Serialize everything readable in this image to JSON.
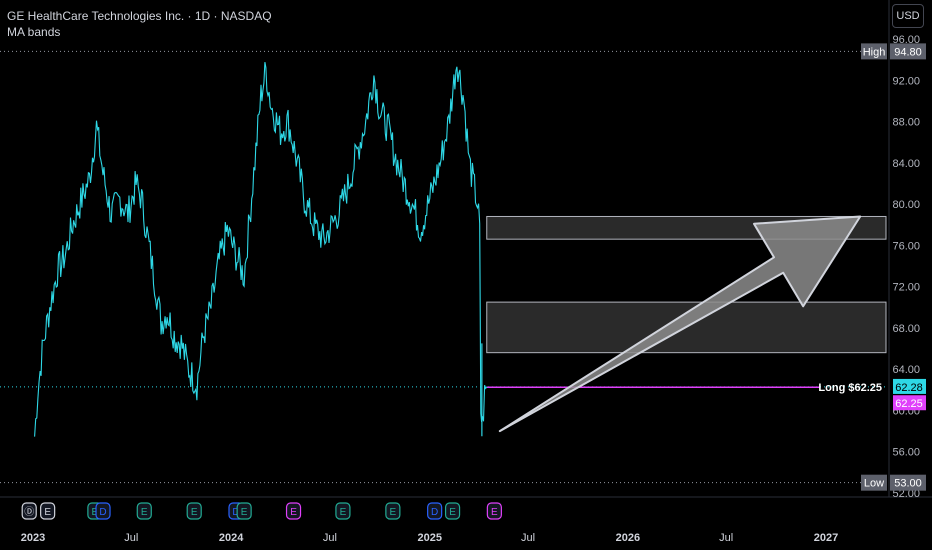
{
  "header": {
    "title": "GE HealthCare Technologies Inc. · 1D · NASDAQ",
    "indicator": "MA bands",
    "currency": "USD"
  },
  "colors": {
    "price": "#2ed8e6",
    "long": "#e040fb",
    "high_low": "#9598a1",
    "zone": "#2a2a2a",
    "arrow": "#8c8c8c"
  },
  "chart_data": {
    "type": "line",
    "ylim": [
      52,
      96
    ],
    "y_ticks": [
      "96.00",
      "92.00",
      "88.00",
      "84.00",
      "80.00",
      "76.00",
      "72.00",
      "68.00",
      "64.00",
      "60.00",
      "56.00",
      "52.00"
    ],
    "x_ticks": [
      "2023",
      "Jul",
      "2024",
      "Jul",
      "2025",
      "Jul",
      "2026",
      "Jul",
      "2027"
    ],
    "high": {
      "label": "High",
      "value": "94.80"
    },
    "low": {
      "label": "Low",
      "value": "53.00"
    },
    "last_price": "62.28",
    "long_label": "Long $62.25",
    "long_value": "62.25",
    "zones": [
      {
        "from": 76.6,
        "to": 78.8
      },
      {
        "from": 65.6,
        "to": 70.5
      }
    ],
    "arrow": {
      "from_date": "2025-05-10",
      "from_price": 58.0,
      "to_date": "2027-03-05",
      "to_price": 78.8
    },
    "events": [
      {
        "date": "2022-12-25",
        "label": "Ⓓ",
        "color": "#d1d4dc",
        "border": "#d1d4dc"
      },
      {
        "date": "2023-01-28",
        "label": "E",
        "color": "#d1d4dc",
        "border": "#d1d4dc"
      },
      {
        "date": "2023-04-25",
        "label": "E",
        "color": "#22ab94",
        "border": "#22ab94"
      },
      {
        "date": "2023-05-10",
        "label": "D",
        "color": "#2962ff",
        "border": "#2962ff"
      },
      {
        "date": "2023-07-25",
        "label": "E",
        "color": "#22ab94",
        "border": "#22ab94"
      },
      {
        "date": "2023-10-25",
        "label": "E",
        "color": "#22ab94",
        "border": "#22ab94"
      },
      {
        "date": "2024-01-10",
        "label": "D",
        "color": "#2962ff",
        "border": "#2962ff"
      },
      {
        "date": "2024-01-25",
        "label": "E",
        "color": "#22ab94",
        "border": "#22ab94"
      },
      {
        "date": "2024-04-25",
        "label": "E",
        "color": "#e040fb",
        "border": "#e040fb"
      },
      {
        "date": "2024-07-25",
        "label": "E",
        "color": "#22ab94",
        "border": "#22ab94"
      },
      {
        "date": "2024-10-25",
        "label": "E",
        "color": "#22ab94",
        "border": "#22ab94"
      },
      {
        "date": "2025-01-10",
        "label": "D",
        "color": "#2962ff",
        "border": "#2962ff"
      },
      {
        "date": "2025-02-12",
        "label": "E",
        "color": "#22ab94",
        "border": "#22ab94"
      },
      {
        "date": "2025-04-30",
        "label": "E",
        "color": "#e040fb",
        "border": "#e040fb"
      }
    ],
    "series": [
      {
        "values": [
          [
            "2023-01-04",
            57.5
          ],
          [
            "2023-01-10",
            62.0
          ],
          [
            "2023-01-20",
            66.5
          ],
          [
            "2023-02-01",
            70.0
          ],
          [
            "2023-02-15",
            73.5
          ],
          [
            "2023-03-01",
            75.0
          ],
          [
            "2023-03-15",
            78.0
          ],
          [
            "2023-04-01",
            80.5
          ],
          [
            "2023-04-15",
            82.5
          ],
          [
            "2023-04-28",
            87.5
          ],
          [
            "2023-05-10",
            83.0
          ],
          [
            "2023-05-25",
            79.0
          ],
          [
            "2023-06-10",
            80.5
          ],
          [
            "2023-06-25",
            79.0
          ],
          [
            "2023-07-10",
            82.0
          ],
          [
            "2023-07-20",
            80.5
          ],
          [
            "2023-08-01",
            76.5
          ],
          [
            "2023-08-15",
            72.0
          ],
          [
            "2023-08-25",
            68.5
          ],
          [
            "2023-09-05",
            69.5
          ],
          [
            "2023-09-20",
            67.0
          ],
          [
            "2023-10-01",
            66.5
          ],
          [
            "2023-10-15",
            64.0
          ],
          [
            "2023-10-30",
            62.5
          ],
          [
            "2023-11-10",
            67.0
          ],
          [
            "2023-11-25",
            70.0
          ],
          [
            "2023-12-10",
            74.5
          ],
          [
            "2023-12-25",
            77.5
          ],
          [
            "2024-01-10",
            75.0
          ],
          [
            "2024-01-25",
            73.0
          ],
          [
            "2024-02-10",
            82.0
          ],
          [
            "2024-02-25",
            90.5
          ],
          [
            "2024-03-05",
            93.0
          ],
          [
            "2024-03-15",
            89.5
          ],
          [
            "2024-04-01",
            87.0
          ],
          [
            "2024-04-15",
            88.0
          ],
          [
            "2024-04-30",
            84.5
          ],
          [
            "2024-05-15",
            80.5
          ],
          [
            "2024-06-01",
            78.0
          ],
          [
            "2024-06-20",
            76.5
          ],
          [
            "2024-07-05",
            78.0
          ],
          [
            "2024-07-20",
            79.5
          ],
          [
            "2024-08-05",
            82.0
          ],
          [
            "2024-08-20",
            85.0
          ],
          [
            "2024-09-05",
            88.0
          ],
          [
            "2024-09-20",
            92.5
          ],
          [
            "2024-10-01",
            89.0
          ],
          [
            "2024-10-15",
            87.5
          ],
          [
            "2024-10-30",
            84.5
          ],
          [
            "2024-11-15",
            82.0
          ],
          [
            "2024-11-30",
            80.0
          ],
          [
            "2024-12-15",
            77.5
          ],
          [
            "2025-01-01",
            80.5
          ],
          [
            "2025-01-20",
            84.0
          ],
          [
            "2025-02-05",
            88.0
          ],
          [
            "2025-02-20",
            94.0
          ],
          [
            "2025-03-05",
            90.0
          ],
          [
            "2025-03-15",
            84.0
          ],
          [
            "2025-03-30",
            80.0
          ],
          [
            "2025-04-03",
            77.5
          ],
          [
            "2025-04-05",
            60.0
          ],
          [
            "2025-04-08",
            58.5
          ],
          [
            "2025-04-12",
            61.5
          ],
          [
            "2025-04-16",
            62.3
          ]
        ]
      }
    ]
  }
}
